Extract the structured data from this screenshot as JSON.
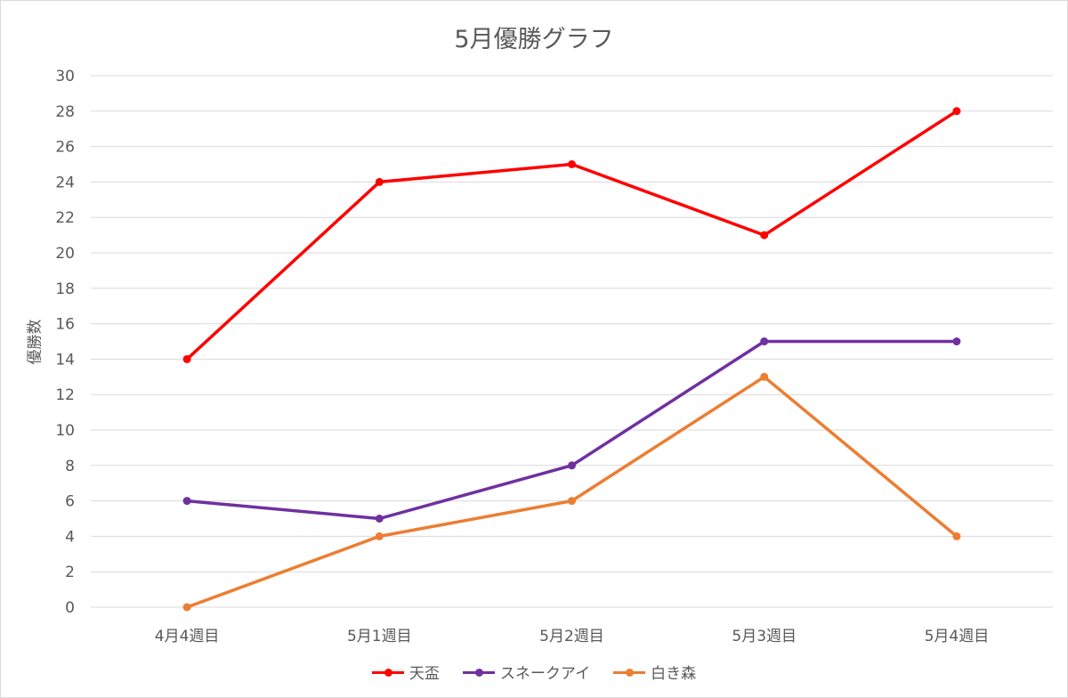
{
  "chart_data": {
    "type": "line",
    "title": "5月優勝グラフ",
    "xlabel": "",
    "ylabel": "優勝数",
    "ylim": [
      0,
      30
    ],
    "ytick_step": 2,
    "grid": true,
    "legend_position": "bottom",
    "categories": [
      "4月4週目",
      "5月1週目",
      "5月2週目",
      "5月3週目",
      "5月4週目"
    ],
    "series": [
      {
        "name": "天盃",
        "color": "#ff0000",
        "values": [
          14,
          24,
          25,
          21,
          28
        ]
      },
      {
        "name": "スネークアイ",
        "color": "#7030a0",
        "values": [
          6,
          5,
          8,
          15,
          15
        ]
      },
      {
        "name": "白き森",
        "color": "#ed7d31",
        "values": [
          0,
          4,
          6,
          13,
          4
        ]
      }
    ]
  }
}
